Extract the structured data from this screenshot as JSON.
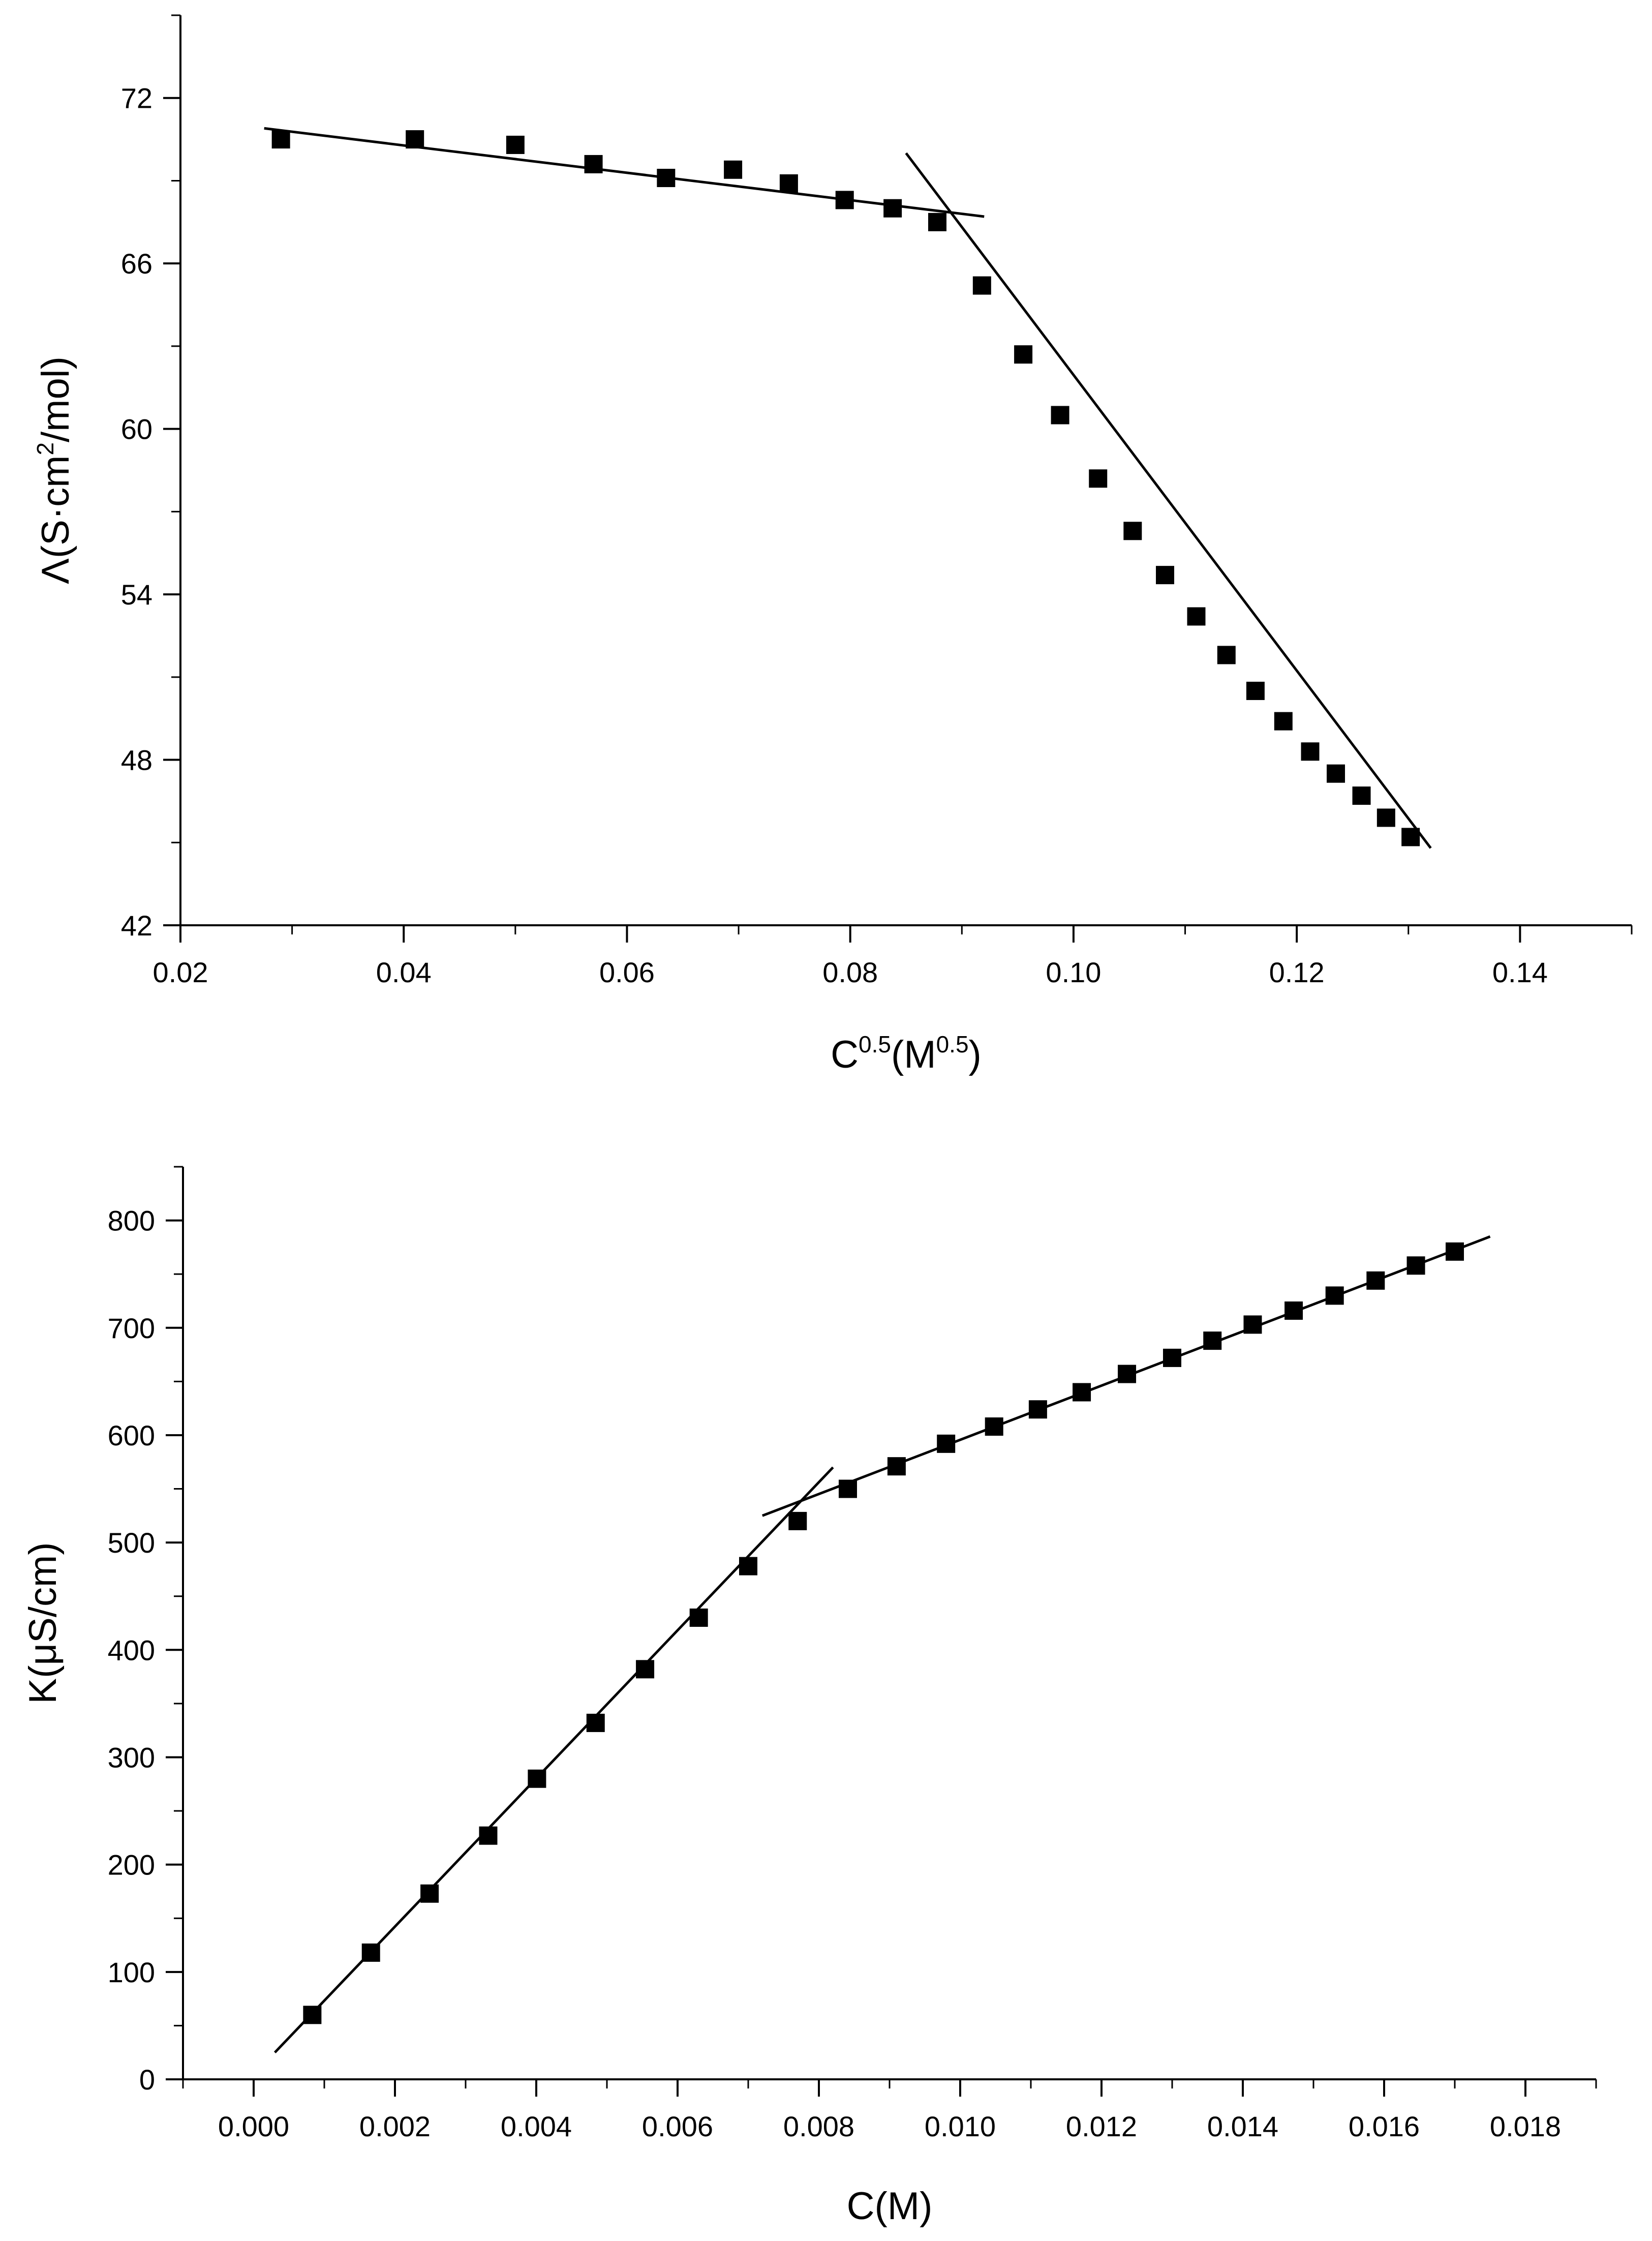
{
  "chart_data": [
    {
      "type": "scatter",
      "title": "",
      "xlabel": {
        "base": "C",
        "sup": "0.5",
        "mid": "(M",
        "sup2": "0.5",
        "end": ")"
      },
      "ylabel": {
        "pre": "Λ(S·cm",
        "sup": "2",
        "post": "/mol)"
      },
      "xlim": [
        0.02,
        0.15
      ],
      "ylim": [
        42,
        75
      ],
      "xticks": [
        0.02,
        0.04,
        0.06,
        0.08,
        0.1,
        0.12,
        0.14
      ],
      "xtick_labels": [
        "0.02",
        "0.04",
        "0.06",
        "0.08",
        "0.10",
        "0.12",
        "0.14"
      ],
      "yticks": [
        42,
        48,
        54,
        60,
        66,
        72
      ],
      "ytick_labels": [
        "42",
        "48",
        "54",
        "60",
        "66",
        "72"
      ],
      "x_minor_step": 0.01,
      "y_minor_step": 3,
      "grid": false,
      "marker": "square",
      "color": "#000000",
      "series": [
        {
          "x": [
            0.029,
            0.041,
            0.05,
            0.057,
            0.0635,
            0.0695,
            0.0745,
            0.0795,
            0.0838,
            0.0878,
            0.0918,
            0.0955,
            0.0988,
            0.1022,
            0.1053,
            0.1082,
            0.111,
            0.1137,
            0.1163,
            0.1188,
            0.1212,
            0.1235,
            0.1258,
            0.128,
            0.1302
          ],
          "y": [
            70.5,
            70.5,
            70.3,
            69.6,
            69.1,
            69.4,
            68.9,
            68.3,
            68.0,
            67.5,
            65.2,
            62.7,
            60.5,
            58.2,
            56.3,
            54.7,
            53.2,
            51.8,
            50.5,
            49.4,
            48.3,
            47.5,
            46.7,
            45.9,
            45.2
          ]
        }
      ],
      "fit_lines": [
        {
          "x": [
            0.0275,
            0.092
          ],
          "y": [
            70.9,
            67.7
          ]
        },
        {
          "x": [
            0.085,
            0.132
          ],
          "y": [
            70.0,
            44.8
          ]
        }
      ]
    },
    {
      "type": "scatter",
      "title": "",
      "xlabel": {
        "text": "C(M)"
      },
      "ylabel": {
        "text": "K(μS/cm)"
      },
      "xlim": [
        -0.001,
        0.019
      ],
      "ylim": [
        0,
        850
      ],
      "xticks": [
        0.0,
        0.002,
        0.004,
        0.006,
        0.008,
        0.01,
        0.012,
        0.014,
        0.016,
        0.018
      ],
      "xtick_labels": [
        "0.000",
        "0.002",
        "0.004",
        "0.006",
        "0.008",
        "0.010",
        "0.012",
        "0.014",
        "0.016",
        "0.018"
      ],
      "yticks": [
        0,
        100,
        200,
        300,
        400,
        500,
        600,
        700,
        800
      ],
      "ytick_labels": [
        "0",
        "100",
        "200",
        "300",
        "400",
        "500",
        "600",
        "700",
        "800"
      ],
      "x_minor_step": 0.001,
      "y_minor_step": 50,
      "grid": false,
      "marker": "square",
      "color": "#000000",
      "series": [
        {
          "x": [
            0.00083,
            0.00166,
            0.00249,
            0.00332,
            0.00401,
            0.00484,
            0.00554,
            0.0063,
            0.007,
            0.0077,
            0.00841,
            0.0091,
            0.0098,
            0.01048,
            0.0111,
            0.01172,
            0.01236,
            0.013,
            0.01357,
            0.01414,
            0.01472,
            0.0153,
            0.01588,
            0.01645,
            0.017
          ],
          "y": [
            60,
            118,
            173,
            227,
            280,
            332,
            382,
            430,
            478,
            520,
            550,
            571,
            592,
            608,
            624,
            640,
            657,
            672,
            688,
            703,
            716,
            730,
            744,
            758,
            771
          ]
        }
      ],
      "fit_lines": [
        {
          "x": [
            0.0003,
            0.0082
          ],
          "y": [
            25,
            570
          ]
        },
        {
          "x": [
            0.0072,
            0.0175
          ],
          "y": [
            525,
            785
          ]
        }
      ]
    }
  ]
}
